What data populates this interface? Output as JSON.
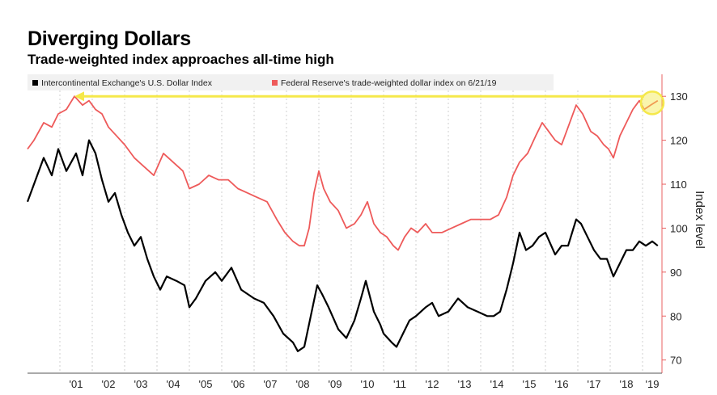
{
  "header": {
    "title": "Diverging Dollars",
    "subtitle": "Trade-weighted index approaches all-time high"
  },
  "chart_data": {
    "type": "line",
    "title": "Diverging Dollars",
    "subtitle": "Trade-weighted index approaches all-time high",
    "xlabel": "",
    "ylabel": "Index level",
    "y_axis_side": "right",
    "ylim": [
      67,
      135
    ],
    "yticks": [
      70,
      80,
      90,
      100,
      110,
      120,
      130
    ],
    "xlim": [
      2000.0,
      2019.6
    ],
    "xtick_labels": [
      "'01",
      "'02",
      "'03",
      "'04",
      "'05",
      "'06",
      "'07",
      "'08",
      "'09",
      "'10",
      "'11",
      "'12",
      "'13",
      "'14",
      "'15",
      "'16",
      "'17",
      "'18",
      "'19"
    ],
    "grid": "vertical dashed",
    "legend_position": "top",
    "series": [
      {
        "name": "Intercontinental Exchange's U.S. Dollar Index",
        "color": "#000000",
        "points": [
          [
            2000.0,
            106
          ],
          [
            2000.2,
            110
          ],
          [
            2000.5,
            116
          ],
          [
            2000.75,
            112
          ],
          [
            2000.95,
            118
          ],
          [
            2001.2,
            113
          ],
          [
            2001.5,
            117
          ],
          [
            2001.7,
            112
          ],
          [
            2001.9,
            120
          ],
          [
            2002.1,
            117
          ],
          [
            2002.3,
            111
          ],
          [
            2002.5,
            106
          ],
          [
            2002.7,
            108
          ],
          [
            2002.9,
            103
          ],
          [
            2003.1,
            99
          ],
          [
            2003.3,
            96
          ],
          [
            2003.5,
            98
          ],
          [
            2003.7,
            93
          ],
          [
            2003.9,
            89
          ],
          [
            2004.1,
            86
          ],
          [
            2004.3,
            89
          ],
          [
            2004.6,
            88
          ],
          [
            2004.85,
            87
          ],
          [
            2005.0,
            82
          ],
          [
            2005.2,
            84
          ],
          [
            2005.5,
            88
          ],
          [
            2005.8,
            90
          ],
          [
            2006.0,
            88
          ],
          [
            2006.3,
            91
          ],
          [
            2006.6,
            86
          ],
          [
            2007.0,
            84
          ],
          [
            2007.3,
            83
          ],
          [
            2007.6,
            80
          ],
          [
            2007.9,
            76
          ],
          [
            2008.2,
            74
          ],
          [
            2008.35,
            72
          ],
          [
            2008.55,
            73
          ],
          [
            2008.75,
            80
          ],
          [
            2008.95,
            87
          ],
          [
            2009.1,
            85
          ],
          [
            2009.3,
            82
          ],
          [
            2009.6,
            77
          ],
          [
            2009.85,
            75
          ],
          [
            2010.1,
            79
          ],
          [
            2010.3,
            84
          ],
          [
            2010.45,
            88
          ],
          [
            2010.7,
            81
          ],
          [
            2010.9,
            78
          ],
          [
            2011.0,
            76
          ],
          [
            2011.25,
            74
          ],
          [
            2011.4,
            73
          ],
          [
            2011.6,
            76
          ],
          [
            2011.8,
            79
          ],
          [
            2012.0,
            80
          ],
          [
            2012.3,
            82
          ],
          [
            2012.5,
            83
          ],
          [
            2012.7,
            80
          ],
          [
            2013.0,
            81
          ],
          [
            2013.3,
            84
          ],
          [
            2013.6,
            82
          ],
          [
            2013.9,
            81
          ],
          [
            2014.2,
            80
          ],
          [
            2014.4,
            80
          ],
          [
            2014.6,
            81
          ],
          [
            2014.8,
            86
          ],
          [
            2015.0,
            92
          ],
          [
            2015.2,
            99
          ],
          [
            2015.4,
            95
          ],
          [
            2015.6,
            96
          ],
          [
            2015.8,
            98
          ],
          [
            2016.0,
            99
          ],
          [
            2016.3,
            94
          ],
          [
            2016.5,
            96
          ],
          [
            2016.7,
            96
          ],
          [
            2016.95,
            102
          ],
          [
            2017.1,
            101
          ],
          [
            2017.3,
            98
          ],
          [
            2017.5,
            95
          ],
          [
            2017.7,
            93
          ],
          [
            2017.9,
            93
          ],
          [
            2018.1,
            89
          ],
          [
            2018.3,
            92
          ],
          [
            2018.5,
            95
          ],
          [
            2018.7,
            95
          ],
          [
            2018.9,
            97
          ],
          [
            2019.1,
            96
          ],
          [
            2019.3,
            97
          ],
          [
            2019.47,
            96
          ]
        ]
      },
      {
        "name": "Federal Reserve's trade-weighted dollar index on 6/21/19",
        "color": "#ee5a5a",
        "points": [
          [
            2000.0,
            118
          ],
          [
            2000.2,
            120
          ],
          [
            2000.5,
            124
          ],
          [
            2000.75,
            123
          ],
          [
            2000.95,
            126
          ],
          [
            2001.2,
            127
          ],
          [
            2001.45,
            130
          ],
          [
            2001.7,
            128
          ],
          [
            2001.9,
            129
          ],
          [
            2002.1,
            127
          ],
          [
            2002.3,
            126
          ],
          [
            2002.5,
            123
          ],
          [
            2002.75,
            121
          ],
          [
            2003.0,
            119
          ],
          [
            2003.3,
            116
          ],
          [
            2003.6,
            114
          ],
          [
            2003.9,
            112
          ],
          [
            2004.2,
            117
          ],
          [
            2004.5,
            115
          ],
          [
            2004.8,
            113
          ],
          [
            2005.0,
            109
          ],
          [
            2005.3,
            110
          ],
          [
            2005.6,
            112
          ],
          [
            2005.9,
            111
          ],
          [
            2006.2,
            111
          ],
          [
            2006.5,
            109
          ],
          [
            2006.8,
            108
          ],
          [
            2007.1,
            107
          ],
          [
            2007.4,
            106
          ],
          [
            2007.7,
            102
          ],
          [
            2007.95,
            99
          ],
          [
            2008.2,
            97
          ],
          [
            2008.4,
            96
          ],
          [
            2008.55,
            96
          ],
          [
            2008.7,
            100
          ],
          [
            2008.85,
            108
          ],
          [
            2009.0,
            113
          ],
          [
            2009.15,
            109
          ],
          [
            2009.35,
            106
          ],
          [
            2009.6,
            104
          ],
          [
            2009.85,
            100
          ],
          [
            2010.1,
            101
          ],
          [
            2010.3,
            103
          ],
          [
            2010.5,
            106
          ],
          [
            2010.7,
            101
          ],
          [
            2010.9,
            99
          ],
          [
            2011.1,
            98
          ],
          [
            2011.3,
            96
          ],
          [
            2011.45,
            95
          ],
          [
            2011.65,
            98
          ],
          [
            2011.85,
            100
          ],
          [
            2012.05,
            99
          ],
          [
            2012.3,
            101
          ],
          [
            2012.5,
            99
          ],
          [
            2012.8,
            99
          ],
          [
            2013.1,
            100
          ],
          [
            2013.4,
            101
          ],
          [
            2013.7,
            102
          ],
          [
            2014.0,
            102
          ],
          [
            2014.3,
            102
          ],
          [
            2014.55,
            103
          ],
          [
            2014.8,
            107
          ],
          [
            2015.0,
            112
          ],
          [
            2015.2,
            115
          ],
          [
            2015.45,
            117
          ],
          [
            2015.7,
            121
          ],
          [
            2015.9,
            124
          ],
          [
            2016.1,
            122
          ],
          [
            2016.3,
            120
          ],
          [
            2016.5,
            119
          ],
          [
            2016.75,
            124
          ],
          [
            2016.95,
            128
          ],
          [
            2017.15,
            126
          ],
          [
            2017.4,
            122
          ],
          [
            2017.6,
            121
          ],
          [
            2017.8,
            119
          ],
          [
            2017.95,
            118
          ],
          [
            2018.1,
            116
          ],
          [
            2018.3,
            121
          ],
          [
            2018.5,
            124
          ],
          [
            2018.7,
            127
          ],
          [
            2018.9,
            129
          ],
          [
            2019.05,
            127
          ],
          [
            2019.25,
            128
          ],
          [
            2019.47,
            129
          ]
        ]
      }
    ],
    "annotation": {
      "type": "arrow",
      "color": "#f5e84a",
      "from": [
        2019.4,
        130
      ],
      "to": [
        2001.45,
        130
      ],
      "highlight": "circle around latest value"
    }
  }
}
